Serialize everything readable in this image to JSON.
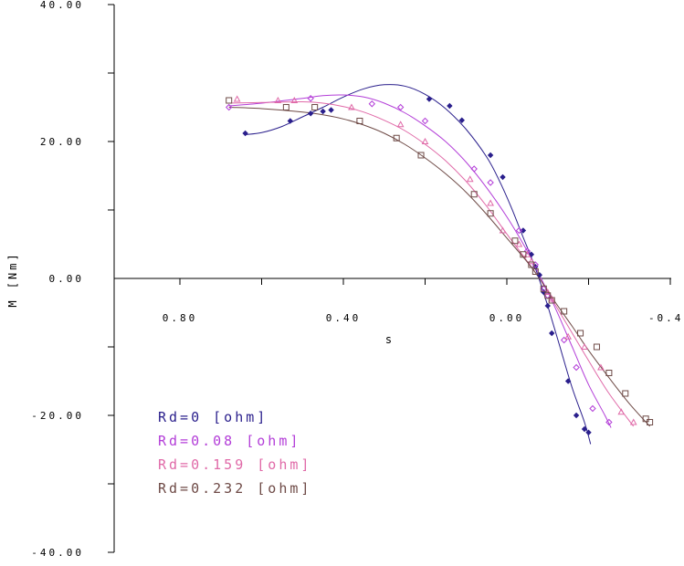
{
  "chart_data": {
    "type": "scatter",
    "title": "",
    "xlabel": "s",
    "ylabel": "M [Nm]",
    "xlim": [
      1.0,
      -0.4
    ],
    "ylim": [
      -40,
      40
    ],
    "x_axis_reversed": true,
    "x_ticks": [
      "0.80",
      "0.40",
      "0.00",
      "-0.40"
    ],
    "y_ticks": [
      "40.00",
      "20.00",
      "0.00",
      "-20.00",
      "-40.00"
    ],
    "grid": false,
    "legend_position": "bottom-left",
    "series": [
      {
        "name": "Rd=0 [ohm]",
        "color": "#2a1f8c",
        "marker": "diamond-filled",
        "points": [
          {
            "x": 0.64,
            "y": 21.2
          },
          {
            "x": 0.53,
            "y": 23.0
          },
          {
            "x": 0.48,
            "y": 24.1
          },
          {
            "x": 0.45,
            "y": 24.4
          },
          {
            "x": 0.43,
            "y": 24.6
          },
          {
            "x": 0.19,
            "y": 26.2
          },
          {
            "x": 0.14,
            "y": 25.2
          },
          {
            "x": 0.11,
            "y": 23.1
          },
          {
            "x": 0.04,
            "y": 18.0
          },
          {
            "x": 0.01,
            "y": 14.8
          },
          {
            "x": -0.04,
            "y": 7.0
          },
          {
            "x": -0.06,
            "y": 3.5
          },
          {
            "x": -0.07,
            "y": 1.7
          },
          {
            "x": -0.08,
            "y": 0.5
          },
          {
            "x": -0.09,
            "y": -2.0
          },
          {
            "x": -0.1,
            "y": -4.0
          },
          {
            "x": -0.11,
            "y": -8.0
          },
          {
            "x": -0.15,
            "y": -15.0
          },
          {
            "x": -0.17,
            "y": -20.0
          },
          {
            "x": -0.19,
            "y": -22.0
          },
          {
            "x": -0.2,
            "y": -22.5
          }
        ],
        "curve": [
          {
            "x": 0.64,
            "y": 21.0
          },
          {
            "x": 0.6,
            "y": 21.3
          },
          {
            "x": 0.55,
            "y": 22.2
          },
          {
            "x": 0.5,
            "y": 23.6
          },
          {
            "x": 0.45,
            "y": 25.0
          },
          {
            "x": 0.4,
            "y": 26.5
          },
          {
            "x": 0.35,
            "y": 27.7
          },
          {
            "x": 0.3,
            "y": 28.3
          },
          {
            "x": 0.25,
            "y": 28.1
          },
          {
            "x": 0.2,
            "y": 26.9
          },
          {
            "x": 0.15,
            "y": 24.8
          },
          {
            "x": 0.1,
            "y": 21.8
          },
          {
            "x": 0.05,
            "y": 17.8
          },
          {
            "x": 0.02,
            "y": 14.5
          },
          {
            "x": -0.01,
            "y": 10.5
          },
          {
            "x": -0.04,
            "y": 6.0
          },
          {
            "x": -0.07,
            "y": 1.5
          },
          {
            "x": -0.1,
            "y": -4.0
          },
          {
            "x": -0.13,
            "y": -10.0
          },
          {
            "x": -0.16,
            "y": -16.0
          },
          {
            "x": -0.19,
            "y": -21.0
          },
          {
            "x": -0.205,
            "y": -24.2
          }
        ]
      },
      {
        "name": "Rd=0.08 [ohm]",
        "color": "#b33ed8",
        "marker": "diamond-open",
        "points": [
          {
            "x": 0.68,
            "y": 25.0
          },
          {
            "x": 0.48,
            "y": 26.3
          },
          {
            "x": 0.33,
            "y": 25.5
          },
          {
            "x": 0.26,
            "y": 25.0
          },
          {
            "x": 0.2,
            "y": 23.0
          },
          {
            "x": 0.08,
            "y": 16.0
          },
          {
            "x": 0.04,
            "y": 14.0
          },
          {
            "x": -0.03,
            "y": 7.0
          },
          {
            "x": -0.05,
            "y": 4.0
          },
          {
            "x": -0.07,
            "y": 2.0
          },
          {
            "x": -0.09,
            "y": -1.5
          },
          {
            "x": -0.1,
            "y": -2.5
          },
          {
            "x": -0.14,
            "y": -9.0
          },
          {
            "x": -0.17,
            "y": -13.0
          },
          {
            "x": -0.21,
            "y": -19.0
          },
          {
            "x": -0.25,
            "y": -21.0
          }
        ],
        "curve": [
          {
            "x": 0.68,
            "y": 25.2
          },
          {
            "x": 0.6,
            "y": 25.6
          },
          {
            "x": 0.5,
            "y": 26.3
          },
          {
            "x": 0.45,
            "y": 26.7
          },
          {
            "x": 0.4,
            "y": 26.8
          },
          {
            "x": 0.35,
            "y": 26.5
          },
          {
            "x": 0.3,
            "y": 25.6
          },
          {
            "x": 0.25,
            "y": 24.2
          },
          {
            "x": 0.2,
            "y": 22.3
          },
          {
            "x": 0.15,
            "y": 20.0
          },
          {
            "x": 0.1,
            "y": 17.0
          },
          {
            "x": 0.05,
            "y": 13.3
          },
          {
            "x": 0.0,
            "y": 9.0
          },
          {
            "x": -0.05,
            "y": 4.0
          },
          {
            "x": -0.08,
            "y": 0.5
          },
          {
            "x": -0.12,
            "y": -4.5
          },
          {
            "x": -0.16,
            "y": -10.0
          },
          {
            "x": -0.2,
            "y": -15.5
          },
          {
            "x": -0.24,
            "y": -20.0
          },
          {
            "x": -0.255,
            "y": -21.8
          }
        ]
      },
      {
        "name": "Rd=0.159 [ohm]",
        "color": "#e06aa8",
        "marker": "triangle-open",
        "points": [
          {
            "x": 0.66,
            "y": 26.2
          },
          {
            "x": 0.56,
            "y": 26.0
          },
          {
            "x": 0.52,
            "y": 26.0
          },
          {
            "x": 0.38,
            "y": 25.0
          },
          {
            "x": 0.26,
            "y": 22.5
          },
          {
            "x": 0.2,
            "y": 20.0
          },
          {
            "x": 0.09,
            "y": 14.5
          },
          {
            "x": 0.04,
            "y": 11.0
          },
          {
            "x": 0.01,
            "y": 7.0
          },
          {
            "x": -0.03,
            "y": 5.0
          },
          {
            "x": -0.05,
            "y": 3.5
          },
          {
            "x": -0.06,
            "y": 2.5
          },
          {
            "x": -0.1,
            "y": -2.0
          },
          {
            "x": -0.11,
            "y": -3.0
          },
          {
            "x": -0.15,
            "y": -8.5
          },
          {
            "x": -0.19,
            "y": -10.0
          },
          {
            "x": -0.23,
            "y": -13.0
          },
          {
            "x": -0.28,
            "y": -19.5
          },
          {
            "x": -0.31,
            "y": -21.0
          }
        ],
        "curve": [
          {
            "x": 0.68,
            "y": 25.6
          },
          {
            "x": 0.6,
            "y": 25.7
          },
          {
            "x": 0.5,
            "y": 25.8
          },
          {
            "x": 0.45,
            "y": 25.6
          },
          {
            "x": 0.4,
            "y": 25.1
          },
          {
            "x": 0.35,
            "y": 24.3
          },
          {
            "x": 0.3,
            "y": 23.1
          },
          {
            "x": 0.25,
            "y": 21.6
          },
          {
            "x": 0.2,
            "y": 19.6
          },
          {
            "x": 0.15,
            "y": 17.2
          },
          {
            "x": 0.1,
            "y": 14.2
          },
          {
            "x": 0.05,
            "y": 10.6
          },
          {
            "x": 0.0,
            "y": 6.5
          },
          {
            "x": -0.05,
            "y": 2.5
          },
          {
            "x": -0.08,
            "y": 0.0
          },
          {
            "x": -0.12,
            "y": -4.0
          },
          {
            "x": -0.16,
            "y": -8.0
          },
          {
            "x": -0.2,
            "y": -12.0
          },
          {
            "x": -0.25,
            "y": -16.8
          },
          {
            "x": -0.31,
            "y": -21.6
          }
        ]
      },
      {
        "name": "Rd=0.232 [ohm]",
        "color": "#6e4a46",
        "marker": "square-open",
        "points": [
          {
            "x": 0.68,
            "y": 26.0
          },
          {
            "x": 0.54,
            "y": 25.0
          },
          {
            "x": 0.47,
            "y": 25.0
          },
          {
            "x": 0.36,
            "y": 23.0
          },
          {
            "x": 0.27,
            "y": 20.5
          },
          {
            "x": 0.21,
            "y": 18.0
          },
          {
            "x": 0.08,
            "y": 12.3
          },
          {
            "x": 0.04,
            "y": 9.5
          },
          {
            "x": -0.02,
            "y": 5.5
          },
          {
            "x": -0.04,
            "y": 3.5
          },
          {
            "x": -0.06,
            "y": 2.0
          },
          {
            "x": -0.07,
            "y": 1.0
          },
          {
            "x": -0.09,
            "y": -1.5
          },
          {
            "x": -0.1,
            "y": -2.5
          },
          {
            "x": -0.11,
            "y": -3.2
          },
          {
            "x": -0.14,
            "y": -4.8
          },
          {
            "x": -0.18,
            "y": -8.0
          },
          {
            "x": -0.22,
            "y": -10.0
          },
          {
            "x": -0.25,
            "y": -13.8
          },
          {
            "x": -0.29,
            "y": -16.8
          },
          {
            "x": -0.34,
            "y": -20.5
          },
          {
            "x": -0.35,
            "y": -21.0
          }
        ],
        "curve": [
          {
            "x": 0.68,
            "y": 25.0
          },
          {
            "x": 0.6,
            "y": 24.8
          },
          {
            "x": 0.5,
            "y": 24.3
          },
          {
            "x": 0.45,
            "y": 23.9
          },
          {
            "x": 0.4,
            "y": 23.3
          },
          {
            "x": 0.35,
            "y": 22.4
          },
          {
            "x": 0.3,
            "y": 21.2
          },
          {
            "x": 0.25,
            "y": 19.6
          },
          {
            "x": 0.2,
            "y": 17.6
          },
          {
            "x": 0.15,
            "y": 15.3
          },
          {
            "x": 0.1,
            "y": 12.6
          },
          {
            "x": 0.05,
            "y": 9.4
          },
          {
            "x": 0.0,
            "y": 5.9
          },
          {
            "x": -0.05,
            "y": 2.4
          },
          {
            "x": -0.08,
            "y": 0.0
          },
          {
            "x": -0.12,
            "y": -3.6
          },
          {
            "x": -0.16,
            "y": -7.0
          },
          {
            "x": -0.2,
            "y": -10.5
          },
          {
            "x": -0.25,
            "y": -14.5
          },
          {
            "x": -0.3,
            "y": -18.3
          },
          {
            "x": -0.35,
            "y": -21.6
          }
        ]
      }
    ]
  }
}
